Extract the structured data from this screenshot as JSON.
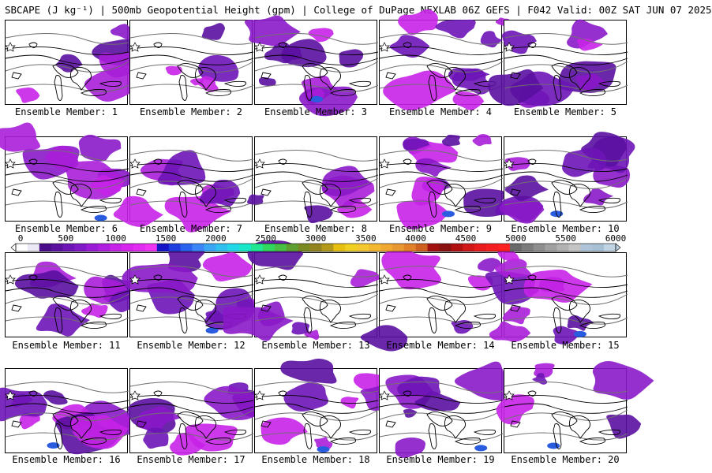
{
  "title": "SBCAPE (J kg⁻¹) | 500mb Geopotential Height (gpm) | College of DuPage NEXLAB 06Z GEFS | F042 Valid: 00Z SAT JUN 07 2025",
  "member_prefix": "Ensemble Member: ",
  "members": [
    "1",
    "2",
    "3",
    "4",
    "5",
    "6",
    "7",
    "8",
    "9",
    "10",
    "11",
    "12",
    "13",
    "14",
    "15",
    "16",
    "17",
    "18",
    "19",
    "20"
  ],
  "colorbar": {
    "ticks": [
      "0",
      "500",
      "1000",
      "1500",
      "2000",
      "2500",
      "3000",
      "3500",
      "4000",
      "4500",
      "5000",
      "5500",
      "6000"
    ],
    "min": 0,
    "max": 6000,
    "colors": [
      "#ffffff",
      "#ece8f6",
      "#4a0d8a",
      "#5a11a0",
      "#6d14b6",
      "#8018c8",
      "#9a1ad6",
      "#b01ee0",
      "#c622e8",
      "#d626ee",
      "#e22cf2",
      "#f034f4",
      "#1616c8",
      "#1f3ede",
      "#2a64ee",
      "#3a86f6",
      "#3aa6f6",
      "#30c0f0",
      "#22d8e8",
      "#18e8c8",
      "#20e890",
      "#30d860",
      "#48c048",
      "#5ea030",
      "#7a8a20",
      "#948420",
      "#b29a18",
      "#e8c010",
      "#f0d020",
      "#f6c830",
      "#f4b830",
      "#f0a830",
      "#e89830",
      "#e08028",
      "#d06020",
      "#a01010",
      "#881010",
      "#b01010",
      "#d01818",
      "#e81c1c",
      "#f41e1e",
      "#ff2020",
      "#6a6a6a",
      "#7c7c7c",
      "#8e8e8e",
      "#a0a0a0",
      "#b2b2b2",
      "#c4c4c4",
      "#b0c4d8",
      "#a8c0d4",
      "#c0d4e4"
    ]
  }
}
